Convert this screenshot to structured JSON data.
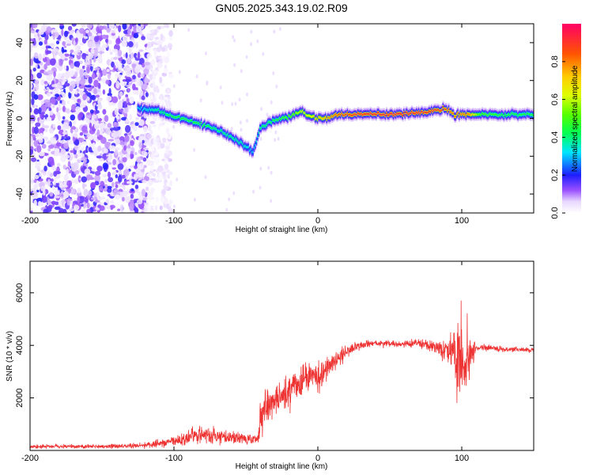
{
  "title": "GN05.2025.343.19.02.R09",
  "chart_data": [
    {
      "type": "heatmap",
      "xlabel": "Height of straight line (km)",
      "ylabel": "Frequency (Hz)",
      "xlim": [
        -200,
        150
      ],
      "ylim": [
        -50,
        50
      ],
      "xticks": [
        {
          "value": -200,
          "label": "-200"
        },
        {
          "value": -100,
          "label": "-100"
        },
        {
          "value": 0,
          "label": "0"
        },
        {
          "value": 100,
          "label": "100"
        }
      ],
      "yticks": [
        {
          "value": -40,
          "label": "-40"
        },
        {
          "value": -20,
          "label": "-20"
        },
        {
          "value": 0,
          "label": "0"
        },
        {
          "value": 20,
          "label": "20"
        },
        {
          "value": 40,
          "label": "40"
        }
      ],
      "noise_region": {
        "x_start": -200,
        "x_end": -108,
        "amplitude": 0.2
      },
      "ridge": [
        {
          "x": -125,
          "freq": 5,
          "amplitude": 0.3
        },
        {
          "x": -110,
          "freq": 4,
          "amplitude": 0.4
        },
        {
          "x": -100,
          "freq": 1,
          "amplitude": 0.45
        },
        {
          "x": -90,
          "freq": -1,
          "amplitude": 0.45
        },
        {
          "x": -80,
          "freq": -3,
          "amplitude": 0.45
        },
        {
          "x": -70,
          "freq": -6,
          "amplitude": 0.4
        },
        {
          "x": -60,
          "freq": -10,
          "amplitude": 0.4
        },
        {
          "x": -50,
          "freq": -15,
          "amplitude": 0.35
        },
        {
          "x": -45,
          "freq": -18,
          "amplitude": 0.3
        },
        {
          "x": -40,
          "freq": -5,
          "amplitude": 0.4
        },
        {
          "x": -30,
          "freq": -1,
          "amplitude": 0.45
        },
        {
          "x": -20,
          "freq": 1,
          "amplitude": 0.5
        },
        {
          "x": -12,
          "freq": 4,
          "amplitude": 0.6
        },
        {
          "x": -5,
          "freq": 1,
          "amplitude": 0.65
        },
        {
          "x": 5,
          "freq": 0,
          "amplitude": 0.75
        },
        {
          "x": 15,
          "freq": 2,
          "amplitude": 0.85
        },
        {
          "x": 30,
          "freq": 2,
          "amplitude": 0.9
        },
        {
          "x": 50,
          "freq": 2,
          "amplitude": 0.92
        },
        {
          "x": 70,
          "freq": 3,
          "amplitude": 0.92
        },
        {
          "x": 80,
          "freq": 4,
          "amplitude": 0.9
        },
        {
          "x": 88,
          "freq": 5,
          "amplitude": 0.85
        },
        {
          "x": 95,
          "freq": 2,
          "amplitude": 0.8
        },
        {
          "x": 105,
          "freq": 2,
          "amplitude": 0.8
        },
        {
          "x": 112,
          "freq": 2,
          "amplitude": 0.5
        },
        {
          "x": 130,
          "freq": 2,
          "amplitude": 0.45
        },
        {
          "x": 150,
          "freq": 2,
          "amplitude": 0.45
        }
      ],
      "colorbar": {
        "label": "Normalized spectral amplitude",
        "range": [
          0,
          1
        ],
        "ticks": [
          {
            "value": 0.0,
            "label": "0.0"
          },
          {
            "value": 0.2,
            "label": "0.2"
          },
          {
            "value": 0.4,
            "label": "0.4"
          },
          {
            "value": 0.6,
            "label": "0.6"
          },
          {
            "value": 0.8,
            "label": "0.8"
          }
        ]
      }
    },
    {
      "type": "line",
      "xlabel": "Height of straight line (km)",
      "ylabel": "SNR (10 * v/v)",
      "xlim": [
        -200,
        150
      ],
      "ylim": [
        0,
        7200
      ],
      "xticks": [
        {
          "value": -200,
          "label": "-200"
        },
        {
          "value": -100,
          "label": "-100"
        },
        {
          "value": 0,
          "label": "0"
        },
        {
          "value": 100,
          "label": "100"
        }
      ],
      "yticks": [
        {
          "value": 2000,
          "label": "2000"
        },
        {
          "value": 4000,
          "label": "4000"
        },
        {
          "value": 6000,
          "label": "6000"
        }
      ],
      "series": [
        {
          "name": "SNR",
          "color": "#ee3333",
          "x": [
            -200,
            -150,
            -120,
            -100,
            -80,
            -60,
            -42,
            -40,
            -35,
            -30,
            -20,
            -10,
            0,
            10,
            20,
            30,
            40,
            50,
            60,
            70,
            80,
            90,
            95,
            100,
            105,
            110,
            120,
            130,
            140,
            150
          ],
          "mean": [
            150,
            150,
            200,
            350,
            600,
            500,
            400,
            1100,
            1700,
            1900,
            2200,
            2700,
            2800,
            3300,
            3800,
            4000,
            4100,
            4050,
            4050,
            4100,
            4000,
            3800,
            3700,
            3500,
            3700,
            3900,
            3900,
            3850,
            3850,
            3800
          ],
          "noise": [
            60,
            60,
            80,
            150,
            250,
            200,
            150,
            500,
            500,
            500,
            500,
            500,
            450,
            300,
            200,
            120,
            100,
            100,
            100,
            120,
            200,
            500,
            800,
            1500,
            800,
            100,
            80,
            80,
            80,
            80
          ]
        }
      ]
    }
  ]
}
